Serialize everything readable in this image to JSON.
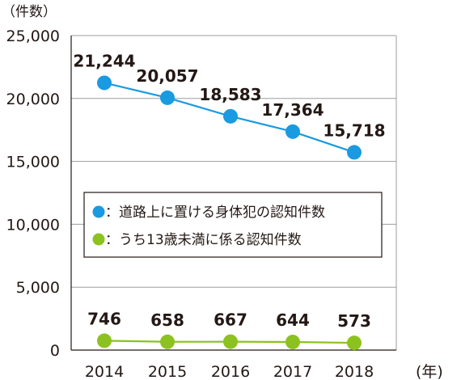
{
  "chart_data": {
    "type": "line",
    "y_unit_label": "（件数）",
    "x_unit_label": "(年)",
    "categories": [
      "2014",
      "2015",
      "2016",
      "2017",
      "2018"
    ],
    "ylim": [
      0,
      25000
    ],
    "yticks": [
      0,
      5000,
      10000,
      15000,
      20000,
      25000
    ],
    "ytick_labels": [
      "0",
      "5,000",
      "10,000",
      "15,000",
      "20,000",
      "25,000"
    ],
    "grid": true,
    "legend_position": "middle-left",
    "series": [
      {
        "name": "：道路上に置ける身体犯の認知件数",
        "color": "#1a9ae0",
        "values": [
          21244,
          20057,
          18583,
          17364,
          15718
        ],
        "labels": [
          "21,244",
          "20,057",
          "18,583",
          "17,364",
          "15,718"
        ]
      },
      {
        "name": "：うち13歳未満に係る認知件数",
        "color": "#8cc21f",
        "values": [
          746,
          658,
          667,
          644,
          573
        ],
        "labels": [
          "746",
          "658",
          "667",
          "644",
          "573"
        ]
      }
    ]
  }
}
